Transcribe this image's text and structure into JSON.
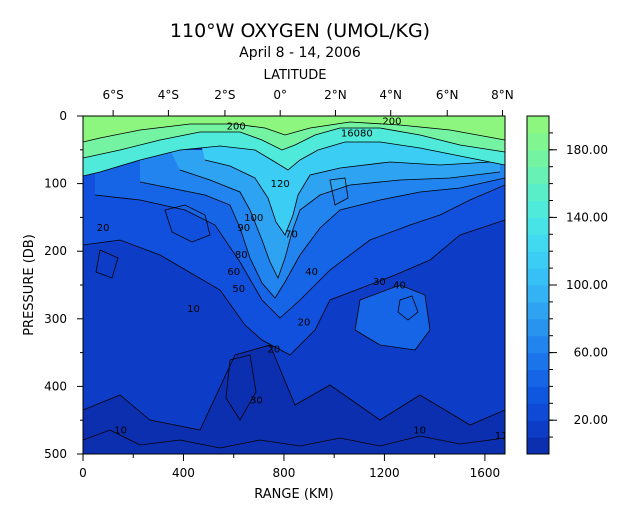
{
  "chart_data": {
    "type": "contour",
    "title": "110°W OXYGEN (UMOL/KG)",
    "subtitle": "April 8 - 14, 2006",
    "top_axis": {
      "label": "LATITUDE",
      "ticks": [
        {
          "range_km": 120,
          "label": "6°S"
        },
        {
          "range_km": 340,
          "label": "4°S"
        },
        {
          "range_km": 565,
          "label": "2°S"
        },
        {
          "range_km": 785,
          "label": "0°"
        },
        {
          "range_km": 1005,
          "label": "2°N"
        },
        {
          "range_km": 1225,
          "label": "4°N"
        },
        {
          "range_km": 1450,
          "label": "6°N"
        },
        {
          "range_km": 1670,
          "label": "8°N"
        }
      ]
    },
    "xaxis": {
      "label": "RANGE (KM)",
      "range": [
        0,
        1680
      ],
      "ticks": [
        0,
        400,
        800,
        1200,
        1600
      ],
      "tick_labels": [
        "0",
        "400",
        "800",
        "1200",
        "1600"
      ]
    },
    "yaxis": {
      "label": "PRESSURE (DB)",
      "range": [
        0,
        500
      ],
      "reversed": true,
      "ticks": [
        0,
        100,
        200,
        300,
        400,
        500
      ],
      "tick_labels": [
        "0",
        "100",
        "200",
        "300",
        "400",
        "500"
      ]
    },
    "colorbar": {
      "range": [
        0,
        200
      ],
      "step": 10,
      "tick_values": [
        20,
        60,
        100,
        140,
        180
      ],
      "tick_labels": [
        "20.00",
        "60.00",
        "100.00",
        "140.00",
        "180.00"
      ],
      "colors": [
        "#0c2fb0",
        "#0d3dc6",
        "#0e4ad6",
        "#1057e0",
        "#1565e6",
        "#1c74ea",
        "#2284ee",
        "#2894f0",
        "#2ea3f2",
        "#33b2f4",
        "#37c0f5",
        "#3ccdf4",
        "#41d9f0",
        "#47e3e6",
        "#4fead9",
        "#5aeec8",
        "#67f1b5",
        "#74f3a2",
        "#80f590",
        "#8cf67f"
      ]
    },
    "contour_labels": [
      {
        "x": 610,
        "y": 40,
        "text": "200"
      },
      {
        "x": 1230,
        "y": 25,
        "text": "200"
      },
      {
        "x": 1090,
        "y": 60,
        "text": "16080"
      },
      {
        "x": 785,
        "y": 210,
        "text": "120"
      },
      {
        "x": 680,
        "y": 310,
        "text": "100"
      },
      {
        "x": 640,
        "y": 340,
        "text": "90"
      },
      {
        "x": 830,
        "y": 360,
        "text": "70"
      },
      {
        "x": 630,
        "y": 420,
        "text": "80"
      },
      {
        "x": 600,
        "y": 470,
        "text": "60"
      },
      {
        "x": 620,
        "y": 520,
        "text": "50"
      },
      {
        "x": 910,
        "y": 470,
        "text": "40"
      },
      {
        "x": 1180,
        "y": 500,
        "text": "30"
      },
      {
        "x": 1260,
        "y": 510,
        "text": "40"
      },
      {
        "x": 880,
        "y": 620,
        "text": "20"
      },
      {
        "x": 760,
        "y": 700,
        "text": "20"
      },
      {
        "x": 690,
        "y": 850,
        "text": "30"
      },
      {
        "x": 80,
        "y": 340,
        "text": "20"
      },
      {
        "x": 440,
        "y": 580,
        "text": "10"
      },
      {
        "x": 150,
        "y": 940,
        "text": "10"
      },
      {
        "x": 1340,
        "y": 940,
        "text": "10"
      },
      {
        "x": 1665,
        "y": 955,
        "text": "11"
      }
    ],
    "grid": false
  }
}
